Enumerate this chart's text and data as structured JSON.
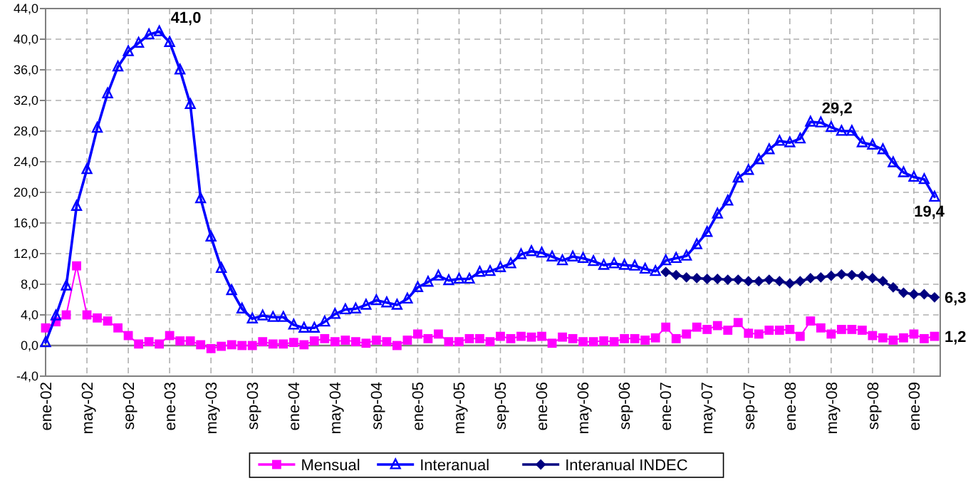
{
  "chart_data": {
    "type": "line",
    "categories": [
      "ene-02",
      null,
      null,
      null,
      "may-02",
      null,
      null,
      null,
      "sep-02",
      null,
      null,
      null,
      "ene-03",
      null,
      null,
      null,
      "may-03",
      null,
      null,
      null,
      "sep-03",
      null,
      null,
      null,
      "ene-04",
      null,
      null,
      null,
      "may-04",
      null,
      null,
      null,
      "sep-04",
      null,
      null,
      null,
      "ene-05",
      null,
      null,
      null,
      "may-05",
      null,
      null,
      null,
      "sep-05",
      null,
      null,
      null,
      "ene-06",
      null,
      null,
      null,
      "may-06",
      null,
      null,
      null,
      "sep-06",
      null,
      null,
      null,
      "ene-07",
      null,
      null,
      null,
      "may-07",
      null,
      null,
      null,
      "sep-07",
      null,
      null,
      null,
      "ene-08",
      null,
      null,
      null,
      "may-08",
      null,
      null,
      null,
      "sep-08",
      null,
      null,
      null,
      "ene-09",
      null,
      null
    ],
    "ylim": [
      -4,
      44
    ],
    "yticks": [
      {
        "value": -4,
        "label": "-4,0"
      },
      {
        "value": 0,
        "label": "0,0"
      },
      {
        "value": 4,
        "label": "4,0"
      },
      {
        "value": 8,
        "label": "8,0"
      },
      {
        "value": 12,
        "label": "12,0"
      },
      {
        "value": 16,
        "label": "16,0"
      },
      {
        "value": 20,
        "label": "20,0"
      },
      {
        "value": 24,
        "label": "24,0"
      },
      {
        "value": 28,
        "label": "28,0"
      },
      {
        "value": 32,
        "label": "32,0"
      },
      {
        "value": 36,
        "label": "36,0"
      },
      {
        "value": 40,
        "label": "40,0"
      },
      {
        "value": 44,
        "label": "44,0"
      }
    ],
    "grid": true,
    "legend": "bottom",
    "line_style": "solid",
    "series": [
      {
        "name": "Mensual",
        "color": "#ff00ff",
        "marker": "square",
        "values": [
          2.3,
          3.1,
          4.0,
          10.4,
          4.0,
          3.6,
          3.2,
          2.3,
          1.3,
          0.2,
          0.5,
          0.2,
          1.3,
          0.6,
          0.6,
          0.1,
          -0.4,
          -0.1,
          0.1,
          0.0,
          0.0,
          0.5,
          0.2,
          0.2,
          0.4,
          0.1,
          0.6,
          0.9,
          0.5,
          0.7,
          0.5,
          0.3,
          0.7,
          0.5,
          0.0,
          0.7,
          1.5,
          0.9,
          1.5,
          0.5,
          0.5,
          0.9,
          0.9,
          0.5,
          1.2,
          0.9,
          1.2,
          1.1,
          1.2,
          0.3,
          1.1,
          0.9,
          0.5,
          0.5,
          0.6,
          0.5,
          0.9,
          0.9,
          0.7,
          1.0,
          2.4,
          0.9,
          1.5,
          2.4,
          2.1,
          2.6,
          2.0,
          3.0,
          1.6,
          1.5,
          2.0,
          2.0,
          2.1,
          1.2,
          3.2,
          2.3,
          1.5,
          2.1,
          2.1,
          2.0,
          1.3,
          1.0,
          0.7,
          1.0,
          1.5,
          0.9,
          1.2
        ],
        "value_labels": [
          null,
          null,
          null,
          null,
          null,
          null,
          null,
          null,
          null,
          null,
          null,
          null,
          null,
          null,
          null,
          null,
          null,
          null,
          null,
          null,
          null,
          null,
          null,
          null,
          null,
          null,
          null,
          null,
          null,
          null,
          null,
          null,
          null,
          null,
          null,
          null,
          null,
          null,
          null,
          null,
          null,
          null,
          null,
          null,
          null,
          null,
          null,
          null,
          null,
          null,
          null,
          null,
          null,
          null,
          null,
          null,
          null,
          null,
          null,
          null,
          null,
          null,
          null,
          null,
          null,
          null,
          null,
          null,
          null,
          null,
          null,
          null,
          null,
          null,
          null,
          null,
          null,
          null,
          null,
          null,
          null,
          null,
          null,
          null,
          null,
          null,
          "1,2"
        ]
      },
      {
        "name": "Interanual",
        "color": "#0000ff",
        "marker": "triangle",
        "values": [
          0.4,
          3.9,
          7.8,
          18.2,
          23.0,
          28.4,
          32.9,
          36.4,
          38.4,
          39.5,
          40.6,
          41.0,
          39.6,
          36.0,
          31.5,
          19.2,
          14.2,
          10.1,
          7.2,
          4.8,
          3.5,
          3.9,
          3.7,
          3.7,
          2.7,
          2.3,
          2.3,
          3.1,
          4.1,
          4.7,
          4.8,
          5.3,
          5.9,
          5.6,
          5.3,
          6.1,
          7.6,
          8.3,
          9.1,
          8.5,
          8.7,
          8.7,
          9.6,
          9.7,
          10.2,
          10.7,
          11.9,
          12.3,
          12.1,
          11.6,
          11.1,
          11.6,
          11.4,
          11.0,
          10.5,
          10.7,
          10.5,
          10.4,
          10.0,
          9.7,
          11.1,
          11.4,
          11.7,
          13.2,
          14.8,
          17.2,
          18.9,
          21.9,
          22.9,
          24.3,
          25.6,
          26.7,
          26.5,
          27.0,
          29.2,
          29.1,
          28.5,
          28.0,
          28.0,
          26.5,
          26.2,
          25.6,
          23.9,
          22.6,
          22.0,
          21.7,
          19.4
        ],
        "value_labels": [
          null,
          null,
          null,
          null,
          null,
          null,
          null,
          null,
          null,
          null,
          null,
          "41,0",
          null,
          null,
          null,
          null,
          null,
          null,
          null,
          null,
          null,
          null,
          null,
          null,
          null,
          null,
          null,
          null,
          null,
          null,
          null,
          null,
          null,
          null,
          null,
          null,
          null,
          null,
          null,
          null,
          null,
          null,
          null,
          null,
          null,
          null,
          null,
          null,
          null,
          null,
          null,
          null,
          null,
          null,
          null,
          null,
          null,
          null,
          null,
          null,
          null,
          null,
          null,
          null,
          null,
          null,
          null,
          null,
          null,
          null,
          null,
          null,
          null,
          null,
          "29,2",
          null,
          null,
          null,
          null,
          null,
          null,
          null,
          null,
          null,
          null,
          null,
          "19,4"
        ]
      },
      {
        "name": "Interanual INDEC",
        "color": "#000080",
        "marker": "diamond",
        "values": [
          null,
          null,
          null,
          null,
          null,
          null,
          null,
          null,
          null,
          null,
          null,
          null,
          null,
          null,
          null,
          null,
          null,
          null,
          null,
          null,
          null,
          null,
          null,
          null,
          null,
          null,
          null,
          null,
          null,
          null,
          null,
          null,
          null,
          null,
          null,
          null,
          null,
          null,
          null,
          null,
          null,
          null,
          null,
          null,
          null,
          null,
          null,
          null,
          null,
          null,
          null,
          null,
          null,
          null,
          null,
          null,
          null,
          null,
          null,
          null,
          9.6,
          9.2,
          8.9,
          8.8,
          8.7,
          8.7,
          8.6,
          8.6,
          8.4,
          8.4,
          8.6,
          8.4,
          8.1,
          8.4,
          8.8,
          8.9,
          9.1,
          9.3,
          9.2,
          9.1,
          8.8,
          8.4,
          7.6,
          6.9,
          6.7,
          6.7,
          6.3
        ],
        "value_labels": [
          null,
          null,
          null,
          null,
          null,
          null,
          null,
          null,
          null,
          null,
          null,
          null,
          null,
          null,
          null,
          null,
          null,
          null,
          null,
          null,
          null,
          null,
          null,
          null,
          null,
          null,
          null,
          null,
          null,
          null,
          null,
          null,
          null,
          null,
          null,
          null,
          null,
          null,
          null,
          null,
          null,
          null,
          null,
          null,
          null,
          null,
          null,
          null,
          null,
          null,
          null,
          null,
          null,
          null,
          null,
          null,
          null,
          null,
          null,
          null,
          null,
          null,
          null,
          null,
          null,
          null,
          null,
          null,
          null,
          null,
          null,
          null,
          null,
          null,
          null,
          null,
          null,
          null,
          null,
          null,
          null,
          null,
          null,
          null,
          null,
          null,
          "6,3"
        ]
      }
    ]
  }
}
